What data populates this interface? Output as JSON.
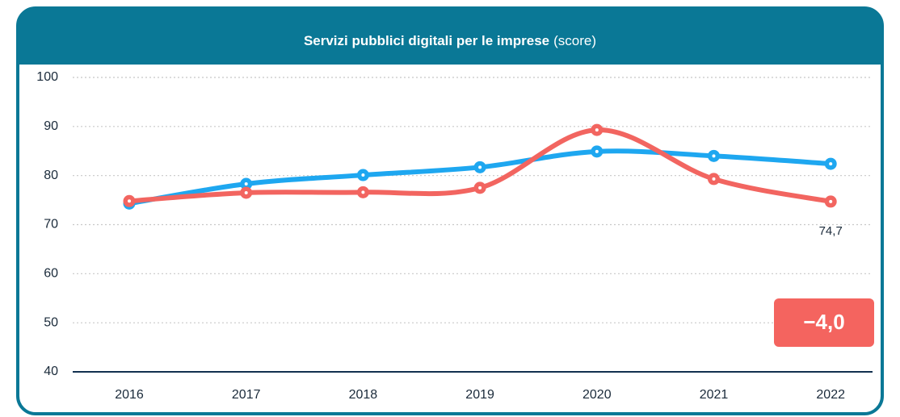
{
  "chart_data": {
    "type": "line",
    "title": "Servizi pubblici digitali per le imprese",
    "subtitle": "(score)",
    "annotation": "−4,0",
    "categories": [
      "2016",
      "2017",
      "2018",
      "2019",
      "2020",
      "2021",
      "2022"
    ],
    "series": [
      {
        "color": "#1ea7f0",
        "values": [
          74.3,
          78.3,
          80.1,
          81.7,
          84.9,
          84.0,
          82.4
        ]
      },
      {
        "color": "#f26560",
        "values": [
          74.8,
          76.5,
          76.6,
          77.5,
          89.3,
          79.3,
          74.7
        ],
        "value_labels": [
          null,
          null,
          null,
          null,
          null,
          null,
          "74,7"
        ]
      }
    ],
    "ylim": [
      40,
      100
    ],
    "yticks": [
      40,
      50,
      60,
      70,
      80,
      90,
      100
    ],
    "grid": true
  }
}
